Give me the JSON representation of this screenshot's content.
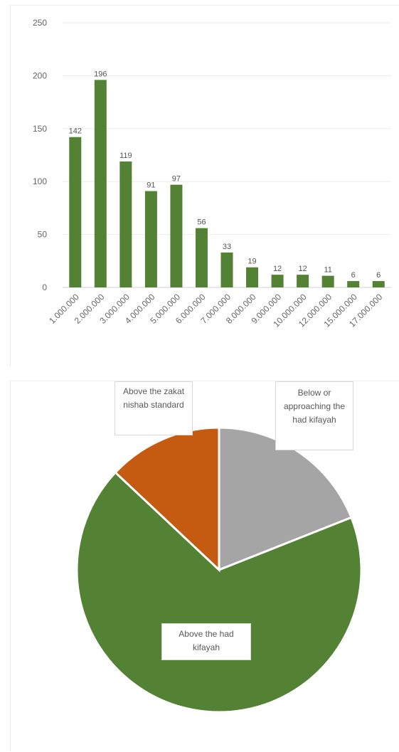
{
  "chart_data": [
    {
      "type": "bar",
      "categories": [
        "1.000.000",
        "2.000.000",
        "3.000.000",
        "4.000.000",
        "5.000.000",
        "6.000.000",
        "7.000.000",
        "8.000.000",
        "9.000.000",
        "10.000.000",
        "12.000.000",
        "15.000.000",
        "17.000.000"
      ],
      "values": [
        142,
        196,
        119,
        91,
        97,
        56,
        33,
        19,
        12,
        12,
        11,
        6,
        6
      ],
      "data_labels": [
        "142",
        "196",
        "119",
        "91",
        "97",
        "56",
        "33",
        "19",
        "12",
        "12",
        "11",
        "6",
        "6"
      ],
      "ylim": [
        0,
        250
      ],
      "yticks": [
        "0",
        "50",
        "100",
        "150",
        "200",
        "250"
      ],
      "grid": true,
      "legend": "none",
      "color": "#548235"
    },
    {
      "type": "pie",
      "slices": [
        {
          "label": "Below or approaching the had kifayah",
          "value": 19,
          "color": "#a5a5a5"
        },
        {
          "label": "Above the had kifayah",
          "value": 68,
          "color": "#548235"
        },
        {
          "label": "Above the zakat nishab standard",
          "value": 13,
          "color": "#c55a11"
        }
      ],
      "legend": "none"
    }
  ]
}
